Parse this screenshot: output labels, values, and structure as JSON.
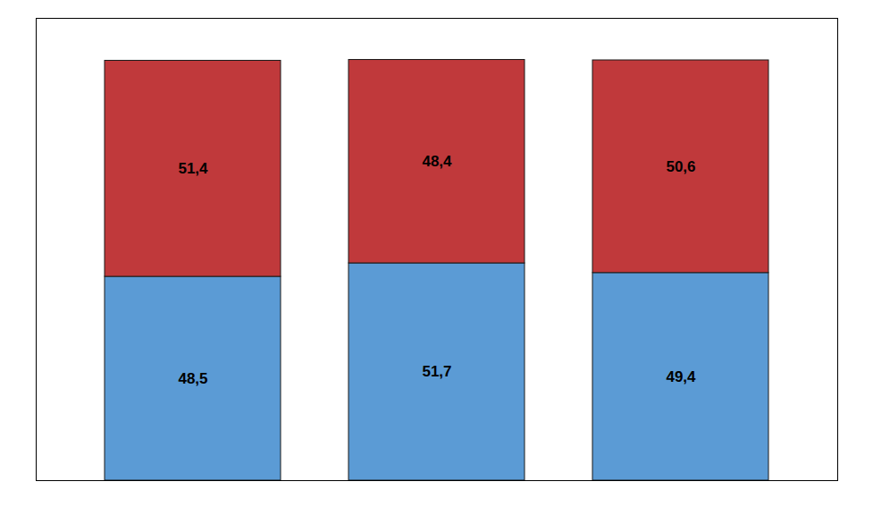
{
  "chart_data": {
    "type": "bar",
    "stacked": true,
    "categories": [
      null,
      null,
      null
    ],
    "series": [
      {
        "color": "#5B9BD5",
        "values": [
          48.5,
          51.7,
          49.4
        ],
        "value_labels": [
          "48,5",
          "51,7",
          "49,4"
        ]
      },
      {
        "color": "#C0393B",
        "values": [
          51.4,
          48.4,
          50.6
        ],
        "value_labels": [
          "51,4",
          "48,4",
          "50,6"
        ]
      }
    ],
    "ylim": [
      0,
      110
    ],
    "tick_labels": false,
    "data_labels": true,
    "grid": false
  }
}
